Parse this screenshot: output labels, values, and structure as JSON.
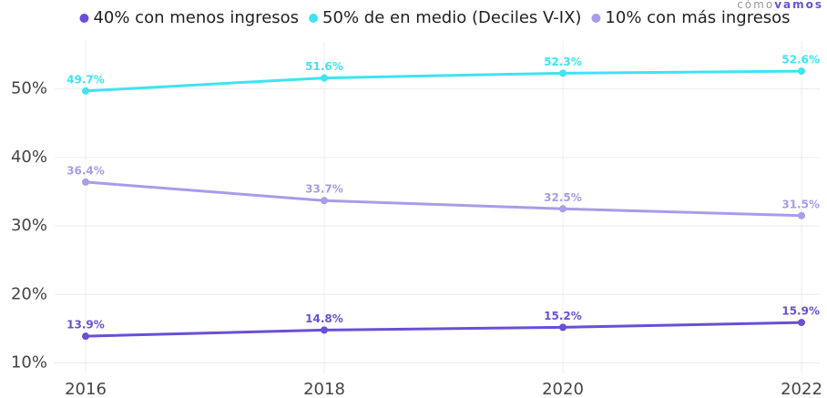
{
  "chart_data": {
    "type": "line",
    "logo": [
      "cómo",
      "vamos"
    ],
    "x": [
      2016,
      2018,
      2020,
      2022
    ],
    "xlim": [
      2016,
      2022
    ],
    "xticks": [
      2016,
      2018,
      2020,
      2022
    ],
    "ylim": [
      9,
      57
    ],
    "yticks": [
      {
        "value": 10,
        "label": "10%"
      },
      {
        "value": 20,
        "label": "20%"
      },
      {
        "value": 30,
        "label": "30%"
      },
      {
        "value": 40,
        "label": "40%"
      },
      {
        "value": 50,
        "label": "50%"
      }
    ],
    "grid": true,
    "legend": "top",
    "series": [
      {
        "name": "40% con menos ingresos",
        "color": "#6a4fd6",
        "values": [
          13.9,
          14.8,
          15.2,
          15.9
        ],
        "value_labels": [
          "13.9%",
          "14.8%",
          "15.2%",
          "15.9%"
        ]
      },
      {
        "name": "50% de en medio (Deciles V-IX)",
        "color": "#3fe3f2",
        "values": [
          49.7,
          51.6,
          52.3,
          52.6
        ],
        "value_labels": [
          "49.7%",
          "51.6%",
          "52.3%",
          "52.6%"
        ]
      },
      {
        "name": "10% con más ingresos",
        "color": "#a99ce8",
        "values": [
          36.4,
          33.7,
          32.5,
          31.5
        ],
        "value_labels": [
          "36.4%",
          "33.7%",
          "32.5%",
          "31.5%"
        ]
      }
    ]
  }
}
